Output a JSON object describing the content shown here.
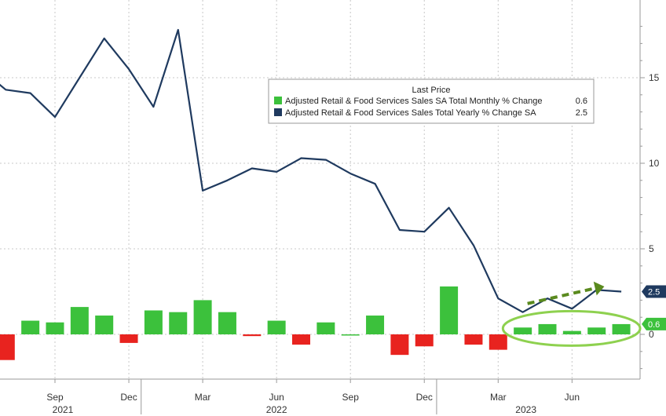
{
  "chart_data": {
    "type": "bar+line",
    "legend": {
      "title": "Last Price",
      "placement": "top-center",
      "entries": [
        {
          "label": "Adjusted Retail & Food Services Sales SA Total Monthly % Change",
          "value": "0.6",
          "color": "#3cc13c"
        },
        {
          "label": "Adjusted Retail & Food Services Sales Total Yearly % Change SA",
          "value": "2.5",
          "color": "#1f3a5f"
        }
      ]
    },
    "x_ticks": [
      "Sep",
      "Dec",
      "Mar",
      "Jun",
      "Sep",
      "Dec",
      "Mar",
      "Jun"
    ],
    "x_tick_months": [
      "2021-09",
      "2021-12",
      "2022-03",
      "2022-06",
      "2022-09",
      "2022-12",
      "2023-03",
      "2023-06"
    ],
    "year_labels": [
      "2021",
      "2022",
      "2023"
    ],
    "y_ticks": [
      "0",
      "5",
      "10",
      "15"
    ],
    "ylim": [
      -2.5,
      19
    ],
    "grid": true,
    "months": [
      "2021-07",
      "2021-08",
      "2021-09",
      "2021-10",
      "2021-11",
      "2021-12",
      "2022-01",
      "2022-02",
      "2022-03",
      "2022-04",
      "2022-05",
      "2022-06",
      "2022-07",
      "2022-08",
      "2022-09",
      "2022-10",
      "2022-11",
      "2022-12",
      "2023-01",
      "2023-02",
      "2023-03",
      "2023-04",
      "2023-05",
      "2023-06",
      "2023-07",
      "2023-08"
    ],
    "monthly_change": [
      -1.5,
      0.8,
      0.7,
      1.6,
      1.1,
      -0.5,
      1.4,
      1.3,
      2.0,
      1.3,
      -0.1,
      0.8,
      -0.6,
      0.7,
      0.0,
      1.1,
      -1.2,
      -0.7,
      2.8,
      -0.6,
      -0.9,
      0.4,
      0.6,
      0.2,
      0.4,
      0.6
    ],
    "line_months": [
      "2021-06",
      "2021-07",
      "2021-08",
      "2021-09",
      "2021-10",
      "2021-11",
      "2021-12",
      "2022-01",
      "2022-02",
      "2022-03",
      "2022-04",
      "2022-05",
      "2022-06",
      "2022-07",
      "2022-08",
      "2022-09",
      "2022-10",
      "2022-11",
      "2022-12",
      "2023-01",
      "2023-02",
      "2023-03",
      "2023-04",
      "2023-05",
      "2023-06",
      "2023-07",
      "2023-08"
    ],
    "yearly_change": [
      15.5,
      14.3,
      14.1,
      12.7,
      15.0,
      17.3,
      15.5,
      13.3,
      17.8,
      8.4,
      9.0,
      9.7,
      9.5,
      10.3,
      10.2,
      9.4,
      8.8,
      6.1,
      6.0,
      7.4,
      5.2,
      2.1,
      1.3,
      2.1,
      1.5,
      2.6,
      2.5
    ],
    "last_values": {
      "monthly": "0.6",
      "yearly": "2.5"
    },
    "annotations": [
      "green dashed trend arrow pointing up-right",
      "green ellipse around recent monthly bars"
    ]
  },
  "colors": {
    "bar_positive": "#3cc13c",
    "bar_negative": "#e8231f",
    "line": "#1f3a5f",
    "grid": "#c8c8c8",
    "arrow": "#5a8a1e",
    "ellipse": "#8ed14f",
    "badge_line_bg": "#1f3a5f",
    "badge_bar_bg": "#3cc13c"
  }
}
